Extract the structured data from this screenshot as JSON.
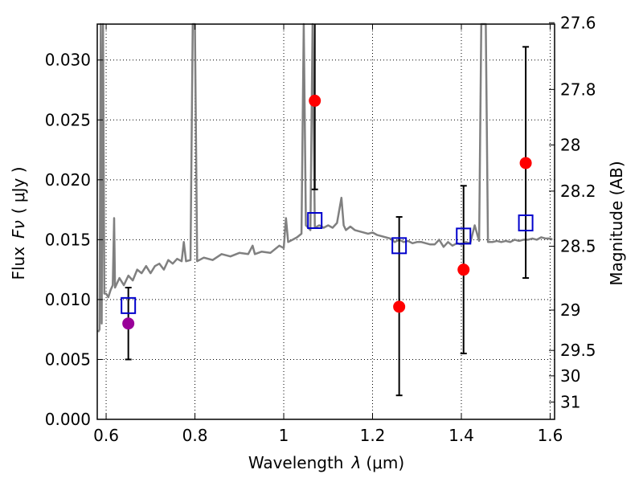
{
  "chart_data": {
    "type": "scatter",
    "xlabel_prefix": "Wavelength",
    "xlabel_symbol": "λ",
    "xlabel_unit": "(μm)",
    "ylabel_prefix": "Flux",
    "ylabel_symbol": "Fν",
    "ylabel_unit": "( μJy )",
    "y2label": "Magnitude (AB)",
    "xlim": [
      0.58,
      1.61
    ],
    "ylim": [
      0.0,
      0.033
    ],
    "grid": true,
    "x_ticks": [
      {
        "value": 0.6,
        "label": "0.6"
      },
      {
        "value": 0.8,
        "label": "0.8"
      },
      {
        "value": 1.0,
        "label": "1"
      },
      {
        "value": 1.2,
        "label": "1.2"
      },
      {
        "value": 1.4,
        "label": "1.4"
      },
      {
        "value": 1.6,
        "label": "1.6"
      }
    ],
    "y_ticks": [
      {
        "value": 0.0,
        "label": "0.000"
      },
      {
        "value": 0.005,
        "label": "0.005"
      },
      {
        "value": 0.01,
        "label": "0.010"
      },
      {
        "value": 0.015,
        "label": "0.015"
      },
      {
        "value": 0.02,
        "label": "0.020"
      },
      {
        "value": 0.025,
        "label": "0.025"
      },
      {
        "value": 0.03,
        "label": "0.030"
      }
    ],
    "y2_ticks": [
      {
        "mag": 27.6,
        "label": "27.6"
      },
      {
        "mag": 27.8,
        "label": "27.8"
      },
      {
        "mag": 28.0,
        "label": "28"
      },
      {
        "mag": 28.2,
        "label": "28.2"
      },
      {
        "mag": 28.5,
        "label": "28.5"
      },
      {
        "mag": 29.0,
        "label": "29"
      },
      {
        "mag": 29.5,
        "label": "29.5"
      },
      {
        "mag": 30.0,
        "label": "30"
      },
      {
        "mag": 31.0,
        "label": "31"
      }
    ],
    "spectrum": {
      "color": "#808080",
      "points": [
        [
          0.582,
          0.0073
        ],
        [
          0.585,
          0.0075
        ],
        [
          0.588,
          0.033
        ],
        [
          0.59,
          0.008
        ],
        [
          0.593,
          0.033
        ],
        [
          0.596,
          0.0105
        ],
        [
          0.6,
          0.0105
        ],
        [
          0.605,
          0.0102
        ],
        [
          0.61,
          0.0108
        ],
        [
          0.615,
          0.0112
        ],
        [
          0.618,
          0.0168
        ],
        [
          0.62,
          0.011
        ],
        [
          0.63,
          0.0118
        ],
        [
          0.64,
          0.0112
        ],
        [
          0.65,
          0.012
        ],
        [
          0.66,
          0.0116
        ],
        [
          0.67,
          0.0125
        ],
        [
          0.68,
          0.0122
        ],
        [
          0.69,
          0.0128
        ],
        [
          0.7,
          0.0122
        ],
        [
          0.71,
          0.0128
        ],
        [
          0.72,
          0.013
        ],
        [
          0.73,
          0.0125
        ],
        [
          0.74,
          0.0133
        ],
        [
          0.75,
          0.013
        ],
        [
          0.76,
          0.0134
        ],
        [
          0.77,
          0.0132
        ],
        [
          0.775,
          0.0148
        ],
        [
          0.78,
          0.0132
        ],
        [
          0.79,
          0.0133
        ],
        [
          0.795,
          0.033
        ],
        [
          0.8,
          0.033
        ],
        [
          0.805,
          0.0132
        ],
        [
          0.82,
          0.0135
        ],
        [
          0.84,
          0.0133
        ],
        [
          0.86,
          0.0138
        ],
        [
          0.88,
          0.0136
        ],
        [
          0.9,
          0.0139
        ],
        [
          0.92,
          0.0138
        ],
        [
          0.93,
          0.0145
        ],
        [
          0.935,
          0.0138
        ],
        [
          0.95,
          0.014
        ],
        [
          0.97,
          0.0139
        ],
        [
          0.99,
          0.0145
        ],
        [
          1.0,
          0.0143
        ],
        [
          1.005,
          0.0168
        ],
        [
          1.01,
          0.0148
        ],
        [
          1.02,
          0.015
        ],
        [
          1.03,
          0.0152
        ],
        [
          1.04,
          0.0155
        ],
        [
          1.045,
          0.033
        ],
        [
          1.05,
          0.0162
        ],
        [
          1.06,
          0.0158
        ],
        [
          1.065,
          0.033
        ],
        [
          1.07,
          0.016
        ],
        [
          1.08,
          0.0162
        ],
        [
          1.09,
          0.016
        ],
        [
          1.1,
          0.0162
        ],
        [
          1.11,
          0.016
        ],
        [
          1.12,
          0.0164
        ],
        [
          1.13,
          0.0185
        ],
        [
          1.135,
          0.0162
        ],
        [
          1.14,
          0.0158
        ],
        [
          1.15,
          0.0161
        ],
        [
          1.16,
          0.0158
        ],
        [
          1.17,
          0.0157
        ],
        [
          1.18,
          0.0156
        ],
        [
          1.19,
          0.0155
        ],
        [
          1.2,
          0.0156
        ],
        [
          1.21,
          0.0154
        ],
        [
          1.22,
          0.0153
        ],
        [
          1.23,
          0.0152
        ],
        [
          1.24,
          0.0151
        ],
        [
          1.25,
          0.0148
        ],
        [
          1.26,
          0.015
        ],
        [
          1.27,
          0.0148
        ],
        [
          1.28,
          0.0149
        ],
        [
          1.29,
          0.0147
        ],
        [
          1.3,
          0.0148
        ],
        [
          1.31,
          0.0148
        ],
        [
          1.32,
          0.0147
        ],
        [
          1.33,
          0.0146
        ],
        [
          1.34,
          0.0146
        ],
        [
          1.35,
          0.015
        ],
        [
          1.36,
          0.0144
        ],
        [
          1.37,
          0.0148
        ],
        [
          1.38,
          0.0145
        ],
        [
          1.39,
          0.0147
        ],
        [
          1.4,
          0.0146
        ],
        [
          1.41,
          0.0148
        ],
        [
          1.42,
          0.0147
        ],
        [
          1.43,
          0.0162
        ],
        [
          1.44,
          0.0149
        ],
        [
          1.445,
          0.033
        ],
        [
          1.455,
          0.033
        ],
        [
          1.46,
          0.0148
        ],
        [
          1.47,
          0.0148
        ],
        [
          1.48,
          0.0149
        ],
        [
          1.49,
          0.0148
        ],
        [
          1.5,
          0.0149
        ],
        [
          1.51,
          0.0148
        ],
        [
          1.52,
          0.015
        ],
        [
          1.53,
          0.0149
        ],
        [
          1.54,
          0.015
        ],
        [
          1.55,
          0.015
        ],
        [
          1.56,
          0.0151
        ],
        [
          1.57,
          0.015
        ],
        [
          1.58,
          0.0152
        ],
        [
          1.59,
          0.0151
        ],
        [
          1.6,
          0.0151
        ],
        [
          1.605,
          0.015
        ]
      ]
    },
    "model_points": {
      "color": "#0000cc",
      "points": [
        [
          0.65,
          0.0095
        ],
        [
          1.07,
          0.0166
        ],
        [
          1.26,
          0.0145
        ],
        [
          1.405,
          0.0153
        ],
        [
          1.545,
          0.0164
        ]
      ]
    },
    "observed_points": [
      {
        "x": 0.65,
        "y": 0.008,
        "yerr_low": 0.005,
        "yerr_high": 0.011,
        "color": "#990099"
      },
      {
        "x": 1.07,
        "y": 0.0266,
        "yerr_low": 0.0192,
        "yerr_high": 0.033,
        "color": "#ff0000"
      },
      {
        "x": 1.26,
        "y": 0.0094,
        "yerr_low": 0.002,
        "yerr_high": 0.0169,
        "color": "#ff0000"
      },
      {
        "x": 1.405,
        "y": 0.0125,
        "yerr_low": 0.0055,
        "yerr_high": 0.0195,
        "color": "#ff0000"
      },
      {
        "x": 1.545,
        "y": 0.0214,
        "yerr_low": 0.0118,
        "yerr_high": 0.0311,
        "color": "#ff0000"
      }
    ]
  }
}
